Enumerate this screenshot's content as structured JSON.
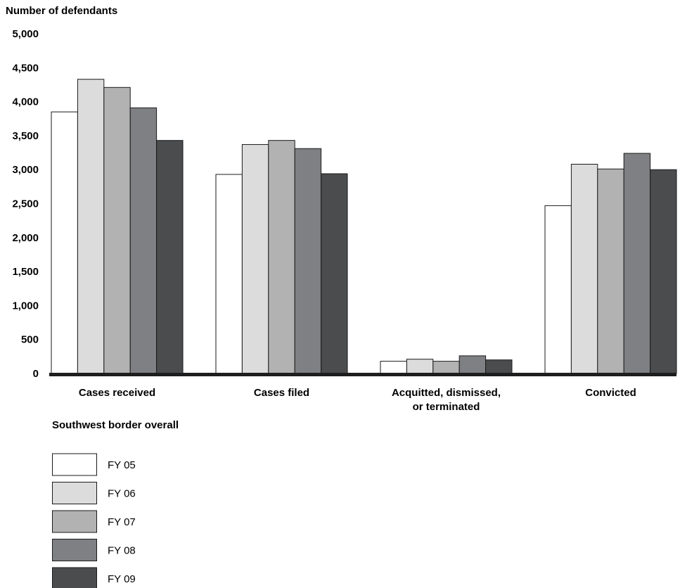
{
  "chart_data": {
    "type": "bar",
    "ylabel": "Number of defendants",
    "ylim": [
      0,
      5000
    ],
    "yticks": [
      "0",
      "500",
      "1,000",
      "1,500",
      "2,000",
      "2,500",
      "3,000",
      "3,500",
      "4,000",
      "4,500",
      "5,000"
    ],
    "ytick_values": [
      0,
      500,
      1000,
      1500,
      2000,
      2500,
      3000,
      3500,
      4000,
      4500,
      5000
    ],
    "categories": [
      [
        "Cases received"
      ],
      [
        "Cases filed"
      ],
      [
        "Acquitted, dismissed,",
        "or terminated"
      ],
      [
        "Convicted"
      ]
    ],
    "legend_title": "Southwest border overall",
    "legend_placement": "bottom-left",
    "grid": false,
    "series": [
      {
        "name": "FY 05",
        "color": "#ffffff",
        "values": [
          3850,
          2930,
          180,
          2470
        ]
      },
      {
        "name": "FY 06",
        "color": "#dcdcdc",
        "values": [
          4330,
          3370,
          210,
          3080
        ]
      },
      {
        "name": "FY 07",
        "color": "#b2b2b2",
        "values": [
          4210,
          3430,
          180,
          3010
        ]
      },
      {
        "name": "FY 08",
        "color": "#7f8083",
        "values": [
          3910,
          3310,
          260,
          3240
        ]
      },
      {
        "name": "FY 09",
        "color": "#4b4c4e",
        "values": [
          3430,
          2940,
          200,
          3000
        ]
      }
    ]
  }
}
